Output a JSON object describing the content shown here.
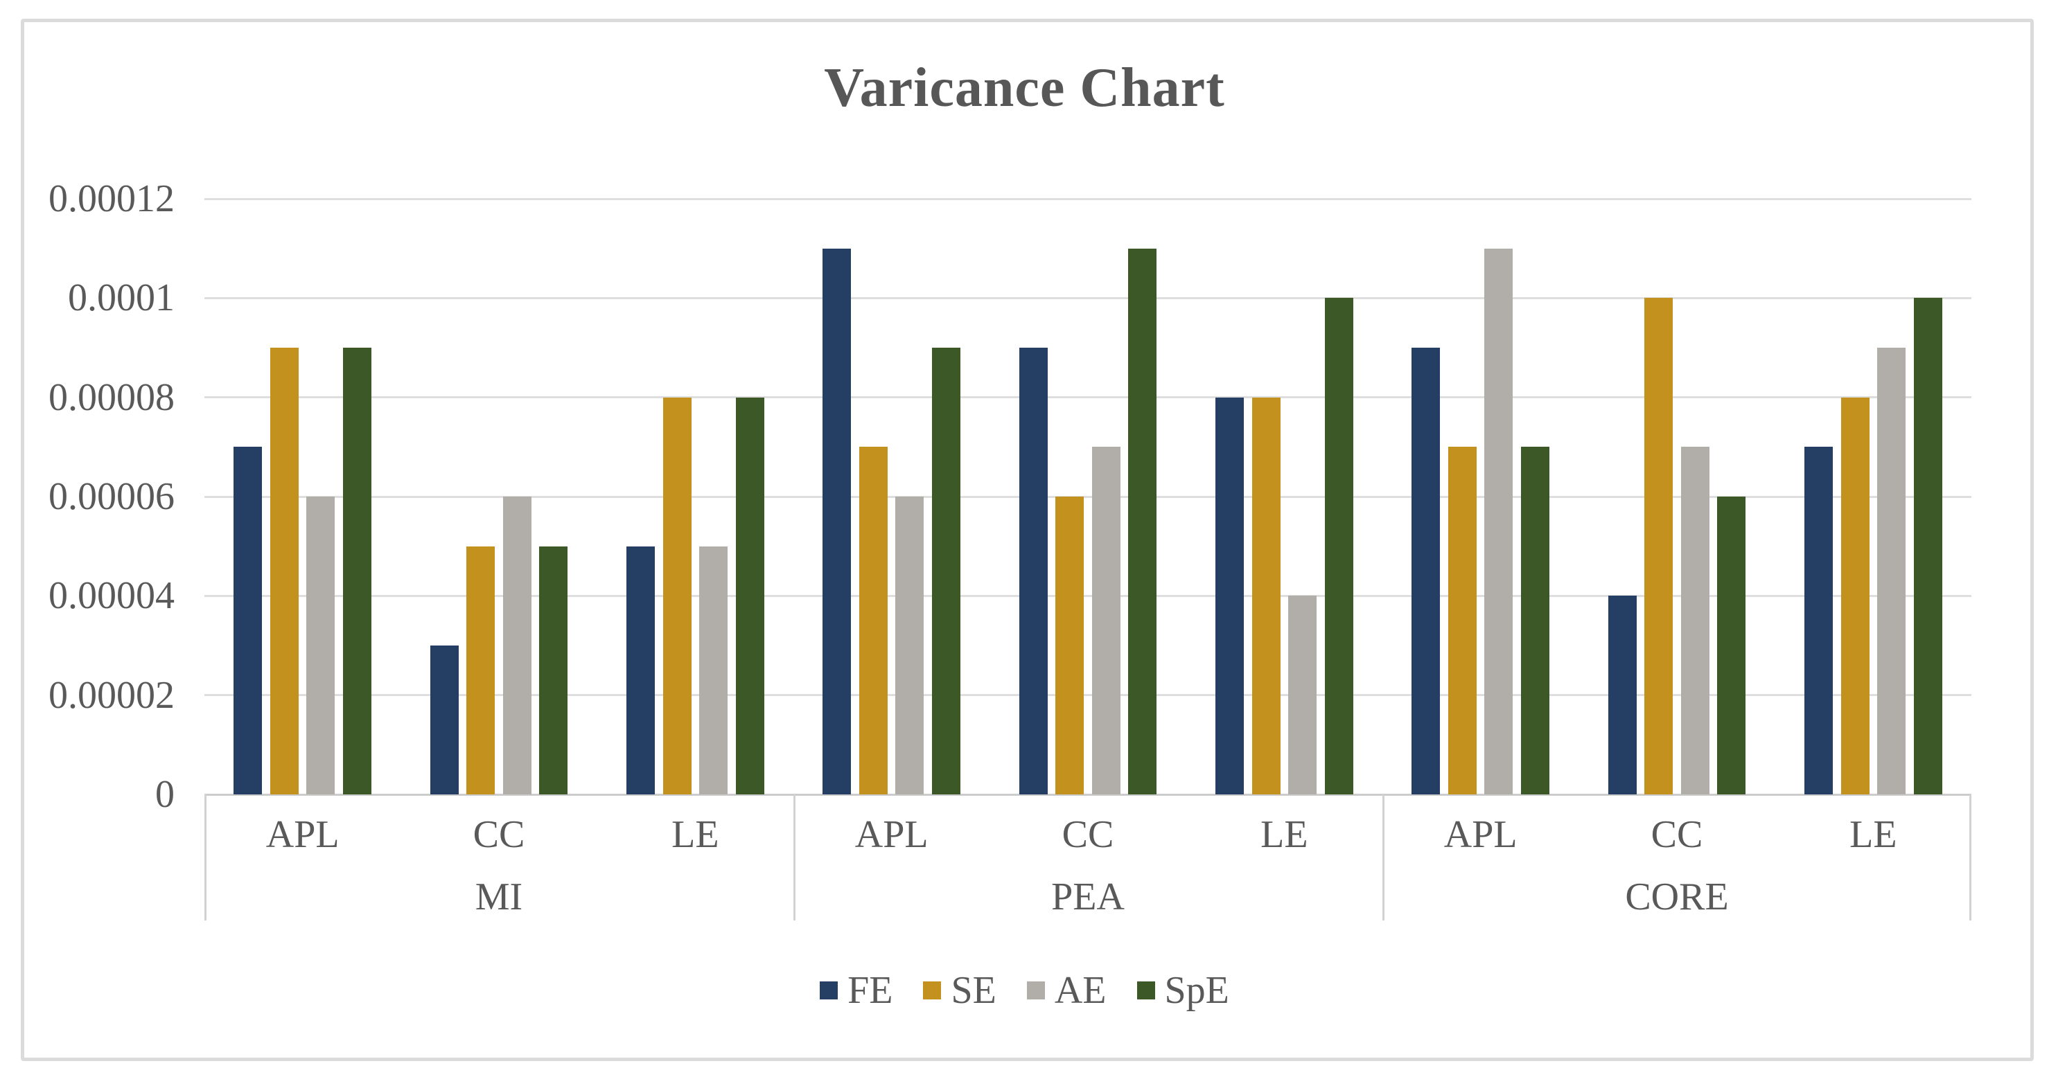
{
  "figure": {
    "title": "Varicance Chart"
  },
  "chart_data": {
    "type": "bar",
    "title": "Varicance Chart",
    "grid": true,
    "legend_position": "bottom",
    "y_axis": {
      "min": 0,
      "max": 0.00012,
      "tick_interval": 2e-05,
      "tick_labels": [
        "0",
        "0.00002",
        "0.00004",
        "0.00006",
        "0.00008",
        "0.0001",
        "0.00012"
      ]
    },
    "group_labels": [
      "MI",
      "PEA",
      "CORE"
    ],
    "categories": [
      "APL",
      "CC",
      "LE"
    ],
    "values_order": [
      "MI-APL",
      "MI-CC",
      "MI-LE",
      "PEA-APL",
      "PEA-CC",
      "PEA-LE",
      "CORE-APL",
      "CORE-CC",
      "CORE-LE"
    ],
    "series": [
      {
        "name": "FE",
        "color": "#253e63",
        "values": [
          7e-05,
          3e-05,
          5e-05,
          0.00011,
          9e-05,
          8e-05,
          9e-05,
          4e-05,
          7e-05
        ]
      },
      {
        "name": "SE",
        "color": "#c3921e",
        "values": [
          9e-05,
          5e-05,
          8e-05,
          7e-05,
          6e-05,
          8e-05,
          7e-05,
          0.0001,
          8e-05
        ]
      },
      {
        "name": "AE",
        "color": "#b1ada9",
        "values": [
          6e-05,
          6e-05,
          5e-05,
          6e-05,
          7e-05,
          4e-05,
          0.00011,
          7e-05,
          9e-05
        ]
      },
      {
        "name": "SpE",
        "color": "#3b5826",
        "values": [
          9e-05,
          5e-05,
          8e-05,
          9e-05,
          0.00011,
          0.0001,
          7e-05,
          6e-05,
          0.0001
        ]
      }
    ],
    "colors": {
      "text": "#595959",
      "title": "#575757",
      "gridline": "#dedede",
      "axis_line": "#cccccc",
      "figure_border": "#dbdbdb"
    }
  }
}
